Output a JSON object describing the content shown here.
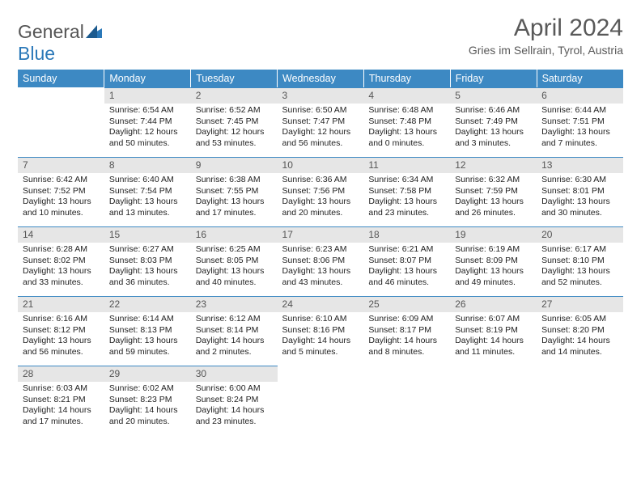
{
  "brand": {
    "word1": "General",
    "word2": "Blue"
  },
  "title": "April 2024",
  "location": "Gries im Sellrain, Tyrol, Austria",
  "dayHeaders": [
    "Sunday",
    "Monday",
    "Tuesday",
    "Wednesday",
    "Thursday",
    "Friday",
    "Saturday"
  ],
  "colors": {
    "headerBg": "#3d89c3",
    "headerText": "#ffffff",
    "dayNumBg": "#e6e6e6",
    "border": "#3d89c3",
    "titleColor": "#595959"
  },
  "firstWeekday": 1,
  "daysInMonth": 30,
  "days": {
    "1": {
      "sunrise": "6:54 AM",
      "sunset": "7:44 PM",
      "daylight": "12 hours and 50 minutes."
    },
    "2": {
      "sunrise": "6:52 AM",
      "sunset": "7:45 PM",
      "daylight": "12 hours and 53 minutes."
    },
    "3": {
      "sunrise": "6:50 AM",
      "sunset": "7:47 PM",
      "daylight": "12 hours and 56 minutes."
    },
    "4": {
      "sunrise": "6:48 AM",
      "sunset": "7:48 PM",
      "daylight": "13 hours and 0 minutes."
    },
    "5": {
      "sunrise": "6:46 AM",
      "sunset": "7:49 PM",
      "daylight": "13 hours and 3 minutes."
    },
    "6": {
      "sunrise": "6:44 AM",
      "sunset": "7:51 PM",
      "daylight": "13 hours and 7 minutes."
    },
    "7": {
      "sunrise": "6:42 AM",
      "sunset": "7:52 PM",
      "daylight": "13 hours and 10 minutes."
    },
    "8": {
      "sunrise": "6:40 AM",
      "sunset": "7:54 PM",
      "daylight": "13 hours and 13 minutes."
    },
    "9": {
      "sunrise": "6:38 AM",
      "sunset": "7:55 PM",
      "daylight": "13 hours and 17 minutes."
    },
    "10": {
      "sunrise": "6:36 AM",
      "sunset": "7:56 PM",
      "daylight": "13 hours and 20 minutes."
    },
    "11": {
      "sunrise": "6:34 AM",
      "sunset": "7:58 PM",
      "daylight": "13 hours and 23 minutes."
    },
    "12": {
      "sunrise": "6:32 AM",
      "sunset": "7:59 PM",
      "daylight": "13 hours and 26 minutes."
    },
    "13": {
      "sunrise": "6:30 AM",
      "sunset": "8:01 PM",
      "daylight": "13 hours and 30 minutes."
    },
    "14": {
      "sunrise": "6:28 AM",
      "sunset": "8:02 PM",
      "daylight": "13 hours and 33 minutes."
    },
    "15": {
      "sunrise": "6:27 AM",
      "sunset": "8:03 PM",
      "daylight": "13 hours and 36 minutes."
    },
    "16": {
      "sunrise": "6:25 AM",
      "sunset": "8:05 PM",
      "daylight": "13 hours and 40 minutes."
    },
    "17": {
      "sunrise": "6:23 AM",
      "sunset": "8:06 PM",
      "daylight": "13 hours and 43 minutes."
    },
    "18": {
      "sunrise": "6:21 AM",
      "sunset": "8:07 PM",
      "daylight": "13 hours and 46 minutes."
    },
    "19": {
      "sunrise": "6:19 AM",
      "sunset": "8:09 PM",
      "daylight": "13 hours and 49 minutes."
    },
    "20": {
      "sunrise": "6:17 AM",
      "sunset": "8:10 PM",
      "daylight": "13 hours and 52 minutes."
    },
    "21": {
      "sunrise": "6:16 AM",
      "sunset": "8:12 PM",
      "daylight": "13 hours and 56 minutes."
    },
    "22": {
      "sunrise": "6:14 AM",
      "sunset": "8:13 PM",
      "daylight": "13 hours and 59 minutes."
    },
    "23": {
      "sunrise": "6:12 AM",
      "sunset": "8:14 PM",
      "daylight": "14 hours and 2 minutes."
    },
    "24": {
      "sunrise": "6:10 AM",
      "sunset": "8:16 PM",
      "daylight": "14 hours and 5 minutes."
    },
    "25": {
      "sunrise": "6:09 AM",
      "sunset": "8:17 PM",
      "daylight": "14 hours and 8 minutes."
    },
    "26": {
      "sunrise": "6:07 AM",
      "sunset": "8:19 PM",
      "daylight": "14 hours and 11 minutes."
    },
    "27": {
      "sunrise": "6:05 AM",
      "sunset": "8:20 PM",
      "daylight": "14 hours and 14 minutes."
    },
    "28": {
      "sunrise": "6:03 AM",
      "sunset": "8:21 PM",
      "daylight": "14 hours and 17 minutes."
    },
    "29": {
      "sunrise": "6:02 AM",
      "sunset": "8:23 PM",
      "daylight": "14 hours and 20 minutes."
    },
    "30": {
      "sunrise": "6:00 AM",
      "sunset": "8:24 PM",
      "daylight": "14 hours and 23 minutes."
    }
  }
}
